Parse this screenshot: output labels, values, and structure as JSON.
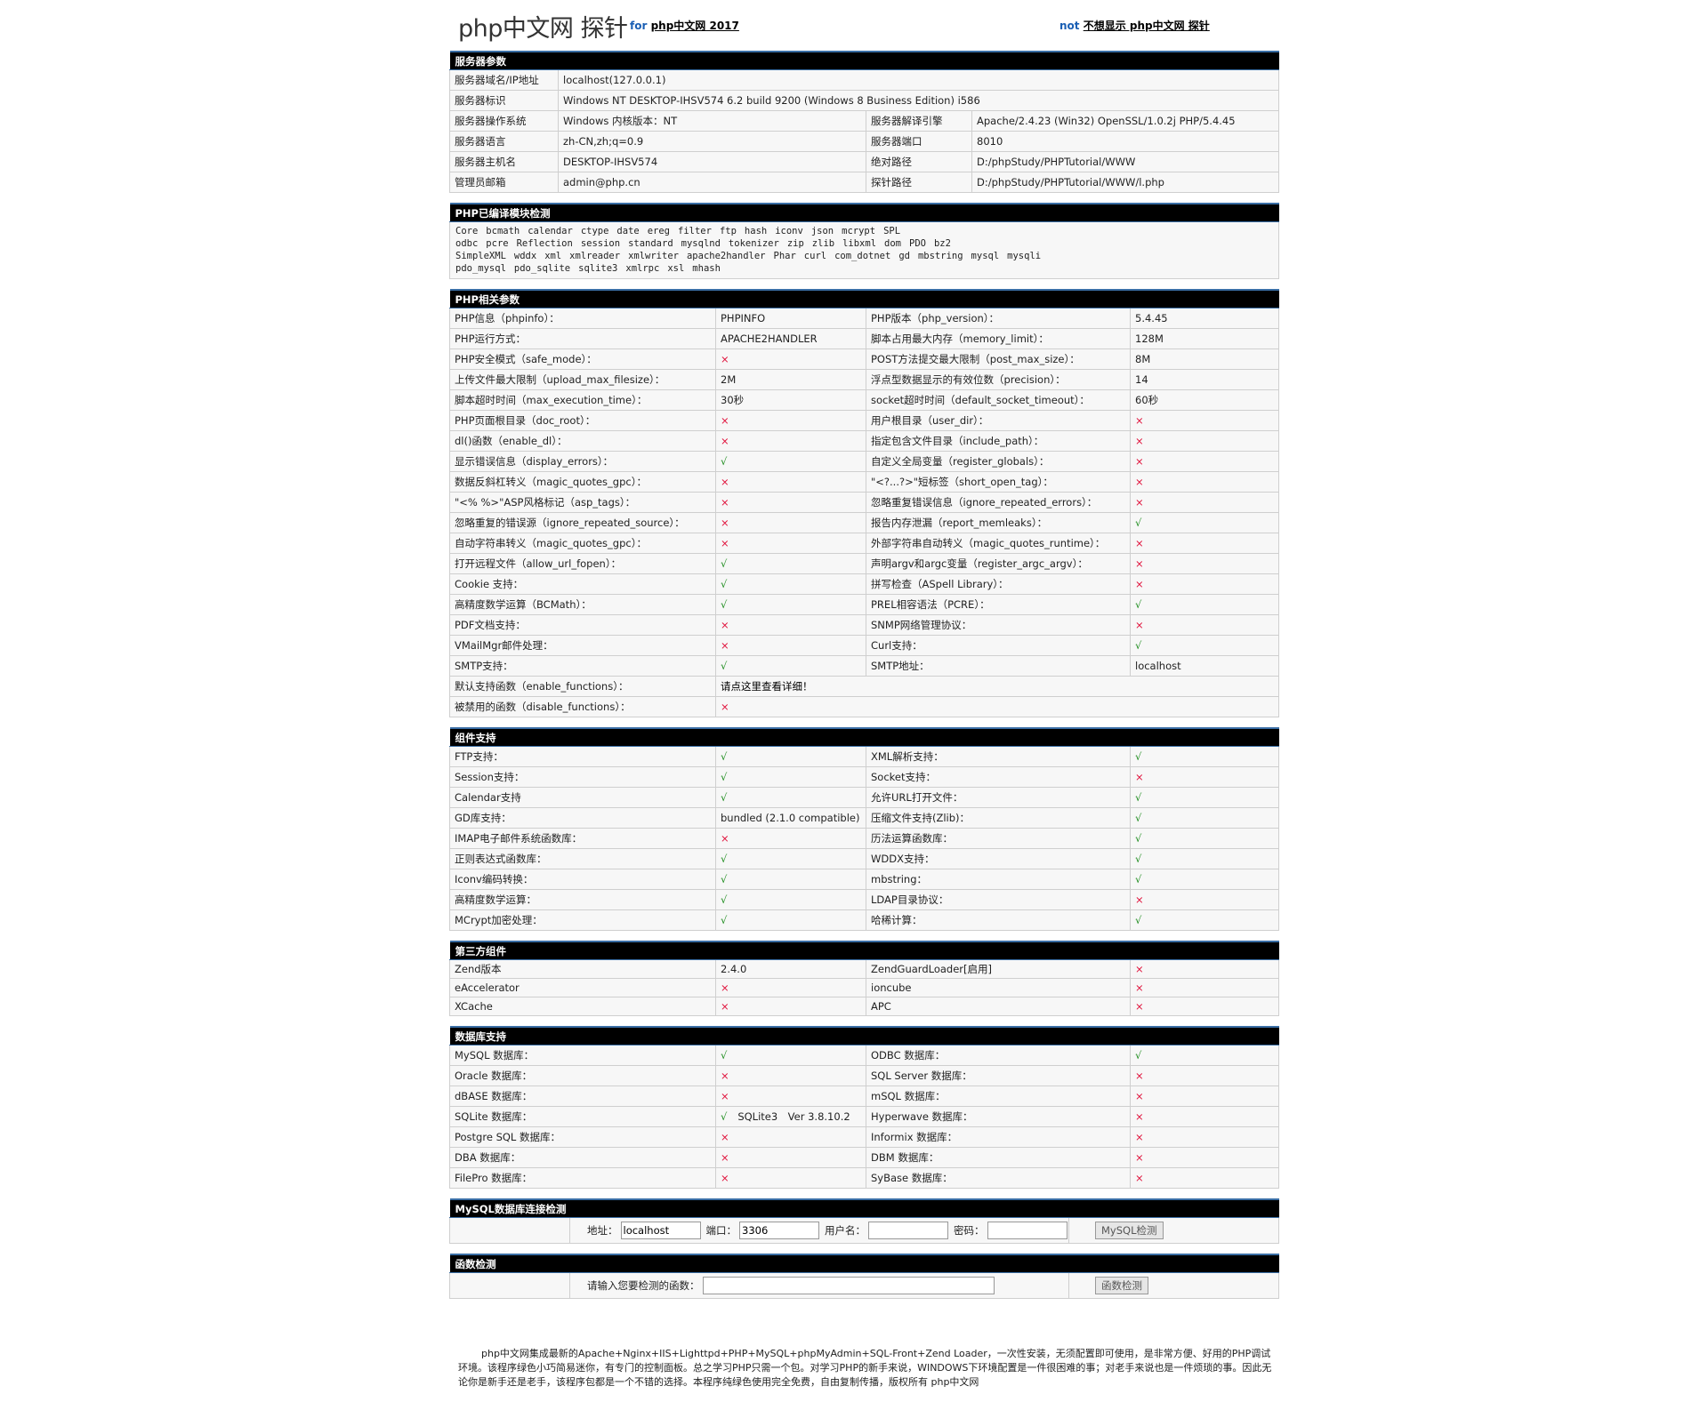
{
  "header": {
    "title": "php中文网 探针",
    "for_prefix": "for",
    "for_link": "php中文网 2017",
    "not_prefix": "not",
    "not_link": "不想显示 php中文网 探针"
  },
  "colors": {
    "yes": "#1d8c1d",
    "no": "#e0103a",
    "header_bg": "#000000",
    "header_border": "#3a6ea5"
  },
  "server": {
    "title": "服务器参数",
    "rows": [
      [
        "服务器域名/IP地址",
        "localhost(127.0.0.1)"
      ],
      [
        "服务器标识",
        "Windows NT DESKTOP-IHSV574 6.2 build 9200 (Windows 8 Business Edition) i586"
      ],
      [
        "服务器操作系统",
        "Windows  内核版本：NT",
        "服务器解译引擎",
        "Apache/2.4.23 (Win32) OpenSSL/1.0.2j PHP/5.4.45"
      ],
      [
        "服务器语言",
        "zh-CN,zh;q=0.9",
        "服务器端口",
        "8010"
      ],
      [
        "服务器主机名",
        "DESKTOP-IHSV574",
        "绝对路径",
        "D:/phpStudy/PHPTutorial/WWW"
      ],
      [
        "管理员邮箱",
        "admin@php.cn",
        "探针路径",
        "D:/phpStudy/PHPTutorial/WWW/l.php"
      ]
    ]
  },
  "modules": {
    "title": "PHP已编译模块检测",
    "lines": [
      [
        "Core",
        "bcmath",
        "calendar",
        "ctype",
        "date",
        "ereg",
        "filter",
        "ftp",
        "hash",
        "iconv",
        "json",
        "mcrypt",
        "SPL"
      ],
      [
        "odbc",
        "pcre",
        "Reflection",
        "session",
        "standard",
        "mysqlnd",
        "tokenizer",
        "zip",
        "zlib",
        "libxml",
        "dom",
        "PDO",
        "bz2"
      ],
      [
        "SimpleXML",
        "wddx",
        "xml",
        "xmlreader",
        "xmlwriter",
        "apache2handler",
        "Phar",
        "curl",
        "com_dotnet",
        "gd",
        "mbstring",
        "mysql",
        "mysqli"
      ],
      [
        "pdo_mysql",
        "pdo_sqlite",
        "sqlite3",
        "xmlrpc",
        "xsl",
        "mhash"
      ]
    ]
  },
  "php": {
    "title": "PHP相关参数",
    "rows": [
      [
        "PHP信息（phpinfo）：",
        "PHPINFO",
        "PHP版本（php_version）：",
        "5.4.45"
      ],
      [
        "PHP运行方式：",
        "APACHE2HANDLER",
        "脚本占用最大内存（memory_limit）：",
        "128M"
      ],
      [
        "PHP安全模式（safe_mode）：",
        "×",
        "POST方法提交最大限制（post_max_size）：",
        "8M"
      ],
      [
        "上传文件最大限制（upload_max_filesize）：",
        "2M",
        "浮点型数据显示的有效位数（precision）：",
        "14"
      ],
      [
        "脚本超时时间（max_execution_time）：",
        "30秒",
        "socket超时时间（default_socket_timeout）：",
        "60秒"
      ],
      [
        "PHP页面根目录（doc_root）：",
        "×",
        "用户根目录（user_dir）：",
        "×"
      ],
      [
        "dl()函数（enable_dl）：",
        "×",
        "指定包含文件目录（include_path）：",
        "×"
      ],
      [
        "显示错误信息（display_errors）：",
        "√",
        "自定义全局变量（register_globals）：",
        "×"
      ],
      [
        "数据反斜杠转义（magic_quotes_gpc）：",
        "×",
        "\"<?...?>\"短标签（short_open_tag）：",
        "×"
      ],
      [
        "\"<% %>\"ASP风格标记（asp_tags）：",
        "×",
        "忽略重复错误信息（ignore_repeated_errors）：",
        "×"
      ],
      [
        "忽略重复的错误源（ignore_repeated_source）：",
        "×",
        "报告内存泄漏（report_memleaks）：",
        "√"
      ],
      [
        "自动字符串转义（magic_quotes_gpc）：",
        "×",
        "外部字符串自动转义（magic_quotes_runtime）：",
        "×"
      ],
      [
        "打开远程文件（allow_url_fopen）：",
        "√",
        "声明argv和argc变量（register_argc_argv）：",
        "×"
      ],
      [
        "Cookie 支持：",
        "√",
        "拼写检查（ASpell Library）：",
        "×"
      ],
      [
        "高精度数学运算（BCMath）：",
        "√",
        "PREL相容语法（PCRE）：",
        "√"
      ],
      [
        "PDF文档支持：",
        "×",
        "SNMP网络管理协议：",
        "×"
      ],
      [
        "VMailMgr邮件处理：",
        "×",
        "Curl支持：",
        "√"
      ],
      [
        "SMTP支持：",
        "√",
        "SMTP地址：",
        "localhost"
      ],
      [
        "默认支持函数（enable_functions）：",
        "请点这里查看详细！"
      ],
      [
        "被禁用的函数（disable_functions）：",
        "×"
      ]
    ]
  },
  "components": {
    "title": "组件支持",
    "rows": [
      [
        "FTP支持：",
        "√",
        "XML解析支持：",
        "√"
      ],
      [
        "Session支持：",
        "√",
        "Socket支持：",
        "×"
      ],
      [
        "Calendar支持",
        "√",
        "允许URL打开文件：",
        "√"
      ],
      [
        "GD库支持：",
        "bundled (2.1.0 compatible)",
        "压缩文件支持(Zlib)：",
        "√"
      ],
      [
        "IMAP电子邮件系统函数库：",
        "×",
        "历法运算函数库：",
        "√"
      ],
      [
        "正则表达式函数库：",
        "√",
        "WDDX支持：",
        "√"
      ],
      [
        "Iconv编码转换：",
        "√",
        "mbstring：",
        "√"
      ],
      [
        "高精度数学运算：",
        "√",
        "LDAP目录协议：",
        "×"
      ],
      [
        "MCrypt加密处理：",
        "√",
        "哈稀计算：",
        "√"
      ]
    ]
  },
  "third": {
    "title": "第三方组件",
    "rows": [
      [
        "Zend版本",
        "2.4.0",
        "ZendGuardLoader[启用]",
        "×"
      ],
      [
        "eAccelerator",
        "×",
        "ioncube",
        "×"
      ],
      [
        "XCache",
        "×",
        "APC",
        "×"
      ]
    ]
  },
  "db": {
    "title": "数据库支持",
    "rows": [
      [
        "MySQL 数据库：",
        "√",
        "ODBC 数据库：",
        "√"
      ],
      [
        "Oracle 数据库：",
        "×",
        "SQL Server 数据库：",
        "×"
      ],
      [
        "dBASE 数据库：",
        "×",
        "mSQL 数据库：",
        "×"
      ],
      [
        "SQLite 数据库：",
        "√",
        "Hyperwave 数据库：",
        "×"
      ],
      [
        "Postgre SQL 数据库：",
        "×",
        "Informix 数据库：",
        "×"
      ],
      [
        "DBA 数据库：",
        "×",
        "DBM 数据库：",
        "×"
      ],
      [
        "FilePro 数据库：",
        "×",
        "SyBase 数据库：",
        "×"
      ]
    ],
    "sqlite_version": "SQLite3　Ver 3.8.10.2"
  },
  "mysql_check": {
    "title": "MySQL数据库连接检测",
    "host_label": "地址：",
    "host_value": "localhost",
    "port_label": "端口：",
    "port_value": "3306",
    "user_label": "用户名：",
    "user_value": "",
    "pass_label": "密码：",
    "pass_value": "",
    "button": "MySQL检测"
  },
  "func_check": {
    "title": "函数检测",
    "label": "请输入您要检测的函数：",
    "value": "",
    "button": "函数检测"
  },
  "footer": {
    "text": "php中文网集成最新的Apache+Nginx+IIS+Lighttpd+PHP+MySQL+phpMyAdmin+SQL-Front+Zend Loader，一次性安装，无须配置即可使用，是非常方便、好用的PHP调试环境。该程序绿色小巧简易迷你，有专门的控制面板。总之学习PHP只需一个包。对学习PHP的新手来说，WINDOWS下环境配置是一件很困难的事；对老手来说也是一件烦琐的事。因此无论你是新手还是老手，该程序包都是一个不错的选择。本程序纯绿色使用完全免费，自由复制传播，版权所有 php中文网"
  }
}
